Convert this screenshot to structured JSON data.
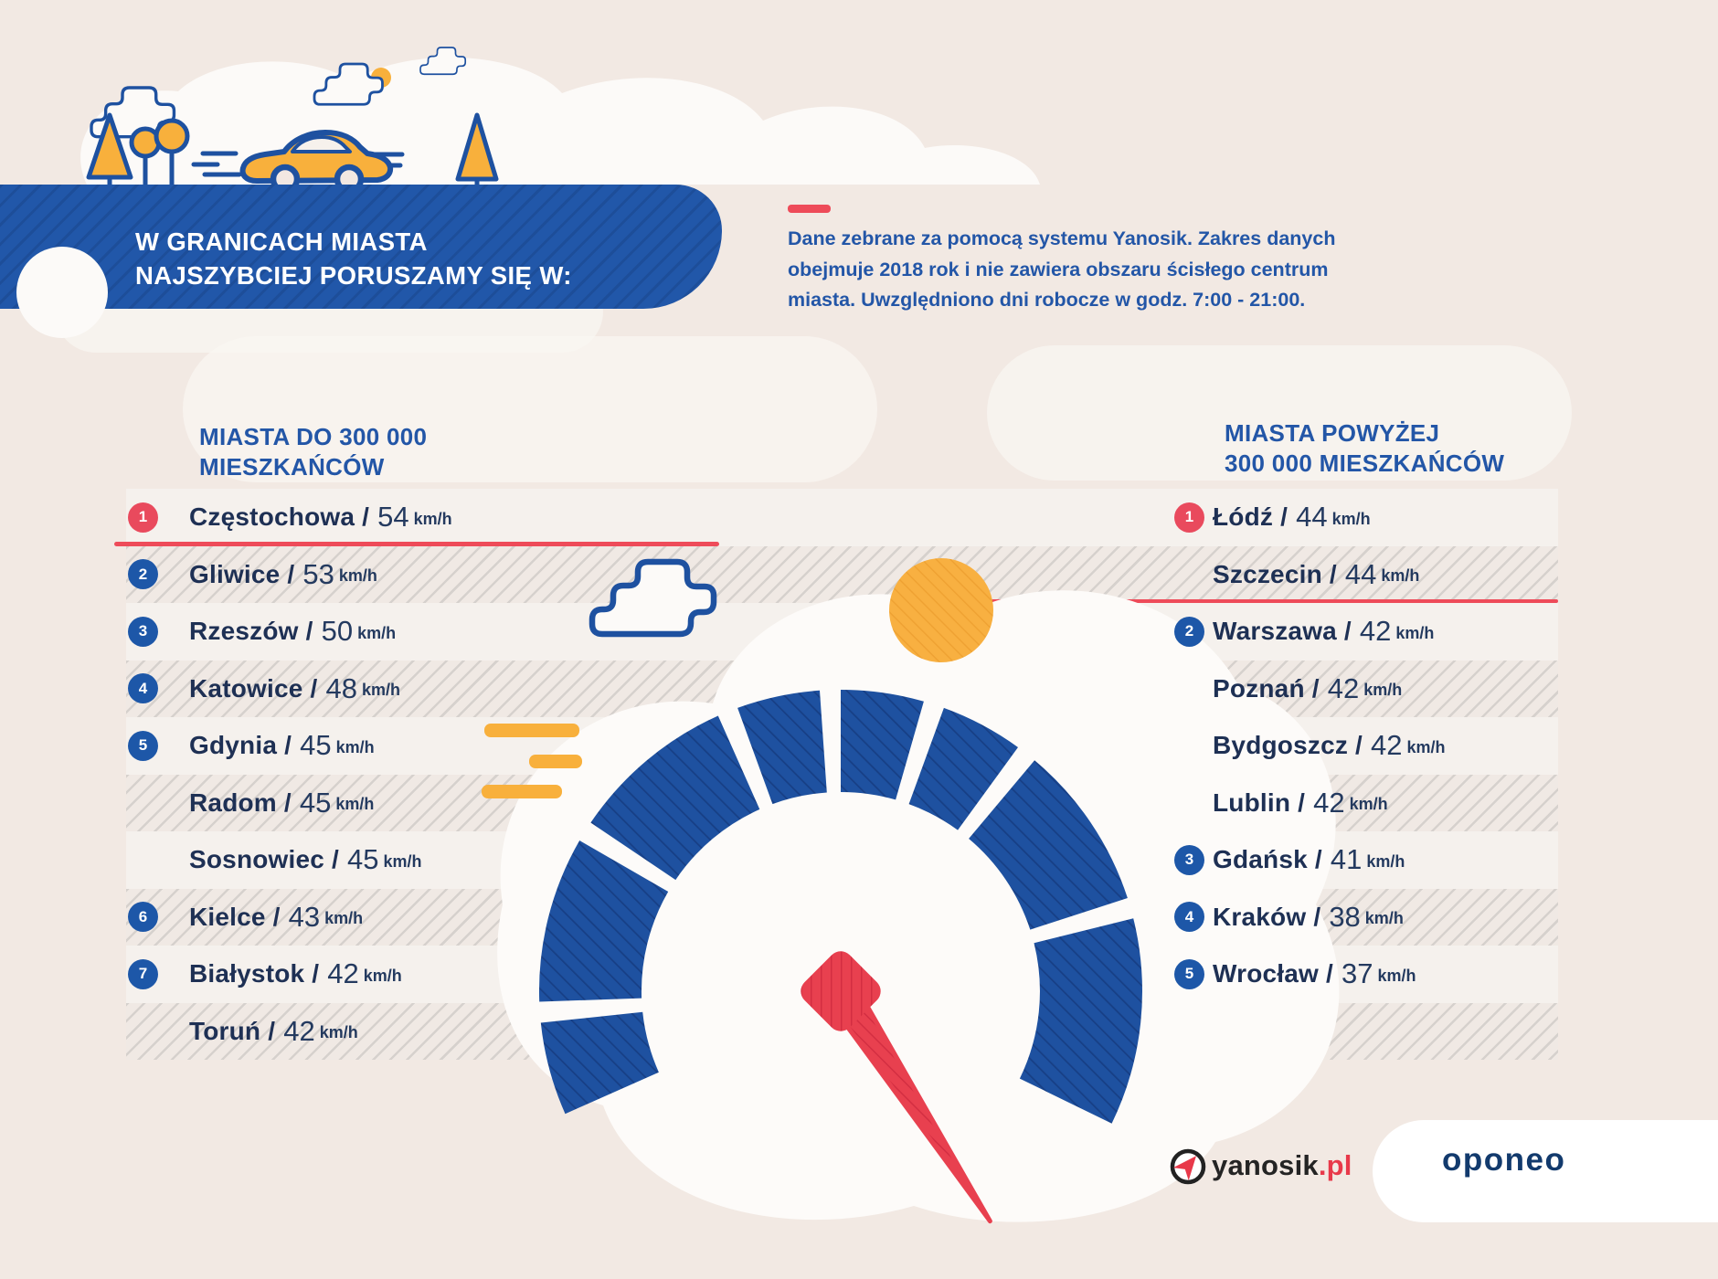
{
  "title": {
    "lines": [
      "W GRANICACH MIASTA",
      "NAJSZYBCIEJ PORUSZAMY SIĘ W:"
    ]
  },
  "note": {
    "lines": [
      "Dane zebrane za pomocą systemu Yanosik. Zakres danych",
      "obejmuje 2018 rok i nie zawiera obszaru ścisłego centrum",
      "miasta. Uwzględniono dni robocze w godz. 7:00 - 21:00."
    ]
  },
  "sep": "/",
  "unit": "km/h",
  "columns": {
    "left": {
      "header_lines": [
        "MIASTA DO 300 000",
        "MIESZKAŃCÓW"
      ],
      "rows": [
        {
          "rank": "1",
          "badge": "red",
          "city": "Częstochowa",
          "value": "54"
        },
        {
          "rank": "2",
          "badge": "blue",
          "city": "Gliwice",
          "value": "53"
        },
        {
          "rank": "3",
          "badge": "blue",
          "city": "Rzeszów",
          "value": "50"
        },
        {
          "rank": "4",
          "badge": "blue",
          "city": "Katowice",
          "value": "48"
        },
        {
          "rank": "5",
          "badge": "blue",
          "city": "Gdynia",
          "value": "45"
        },
        {
          "city": "Radom",
          "value": "45"
        },
        {
          "city": "Sosnowiec",
          "value": "45"
        },
        {
          "rank": "6",
          "badge": "blue",
          "city": "Kielce",
          "value": "43"
        },
        {
          "rank": "7",
          "badge": "blue",
          "city": "Białystok",
          "value": "42"
        },
        {
          "city": "Toruń",
          "value": "42"
        }
      ]
    },
    "right": {
      "header_lines": [
        "MIASTA POWYŻEJ",
        "300 000 MIESZKAŃCÓW"
      ],
      "rows": [
        {
          "rank": "1",
          "badge": "red",
          "city": "Łódź",
          "value": "44"
        },
        {
          "city": "Szczecin",
          "value": "44"
        },
        {
          "rank": "2",
          "badge": "blue",
          "city": "Warszawa",
          "value": "42"
        },
        {
          "city": "Poznań",
          "value": "42"
        },
        {
          "city": "Bydgoszcz",
          "value": "42"
        },
        {
          "city": "Lublin",
          "value": "42"
        },
        {
          "rank": "3",
          "badge": "blue",
          "city": "Gdańsk",
          "value": "41"
        },
        {
          "rank": "4",
          "badge": "blue",
          "city": "Kraków",
          "value": "38"
        },
        {
          "rank": "5",
          "badge": "blue",
          "city": "Wrocław",
          "value": "37"
        }
      ]
    }
  },
  "footer": {
    "yanosik_text": "yanosik",
    "yanosik_tld": ".pl",
    "oponeo": "oponeo"
  },
  "colors": {
    "blue": "#2157a9",
    "navy": "#1e3054",
    "red": "#ee4b59",
    "yellow": "#f8b03c",
    "badge_blue": "#1d57a8",
    "badge_red": "#e94a5d",
    "gauge_blue": "#1e51a0",
    "needle_red": "#e8404f"
  },
  "chart_data": [
    {
      "type": "table",
      "title": "MIASTA DO 300 000 MIESZKAŃCÓW",
      "columns": [
        "rank",
        "city",
        "speed_kmh"
      ],
      "rows": [
        [
          1,
          "Częstochowa",
          54
        ],
        [
          2,
          "Gliwice",
          53
        ],
        [
          3,
          "Rzeszów",
          50
        ],
        [
          4,
          "Katowice",
          48
        ],
        [
          5,
          "Gdynia",
          45
        ],
        [
          null,
          "Radom",
          45
        ],
        [
          null,
          "Sosnowiec",
          45
        ],
        [
          6,
          "Kielce",
          43
        ],
        [
          7,
          "Białystok",
          42
        ],
        [
          null,
          "Toruń",
          42
        ]
      ],
      "unit": "km/h"
    },
    {
      "type": "table",
      "title": "MIASTA POWYŻEJ 300 000 MIESZKAŃCÓW",
      "columns": [
        "rank",
        "city",
        "speed_kmh"
      ],
      "rows": [
        [
          1,
          "Łódź",
          44
        ],
        [
          null,
          "Szczecin",
          44
        ],
        [
          2,
          "Warszawa",
          42
        ],
        [
          null,
          "Poznań",
          42
        ],
        [
          null,
          "Bydgoszcz",
          42
        ],
        [
          null,
          "Lublin",
          42
        ],
        [
          3,
          "Gdańsk",
          41
        ],
        [
          4,
          "Kraków",
          38
        ],
        [
          5,
          "Wrocław",
          37
        ]
      ],
      "unit": "km/h"
    }
  ]
}
